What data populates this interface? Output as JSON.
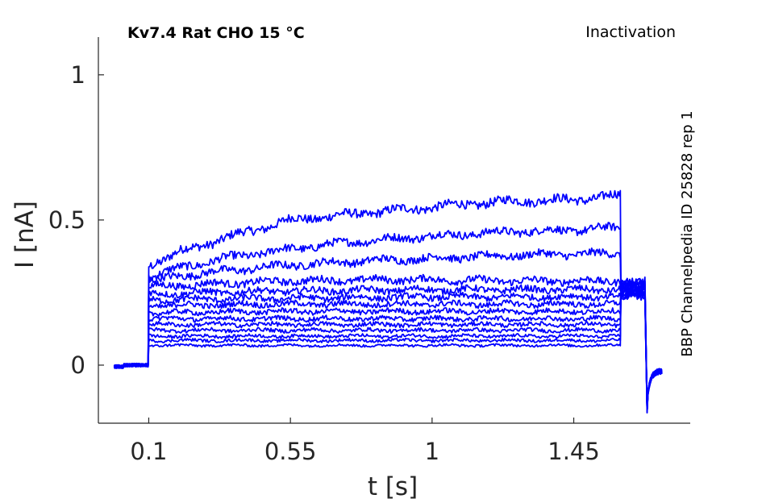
{
  "chart_data": {
    "type": "line",
    "title": "Kv7.4  Rat  CHO  15 °C",
    "subtitle": "Inactivation",
    "side_note": "BBP Channelpedia ID 25828 rep 1",
    "xlabel": "t [s]",
    "ylabel": "I [nA]",
    "xlim": [
      -0.06,
      1.82
    ],
    "ylim": [
      -0.2,
      1.13
    ],
    "xticks": [
      0.1,
      0.55,
      1,
      1.45
    ],
    "xtick_labels": [
      "0.1",
      "0.55",
      "1",
      "1.45"
    ],
    "yticks": [
      0,
      0.5,
      1
    ],
    "ytick_labels": [
      "0",
      "0.5",
      "1"
    ],
    "grid": false,
    "line_color": "#0000ff",
    "protocol": {
      "baseline_start": -0.01,
      "step_on": 0.1,
      "step_off": 1.6,
      "tail_end": 1.68,
      "end": 1.73,
      "tail_current": 0.26,
      "tail_spike": -0.15,
      "end_current": -0.02
    },
    "series": [
      {
        "values": [
          [
            0.1,
            0.345
          ],
          [
            0.2,
            0.39
          ],
          [
            0.35,
            0.44
          ],
          [
            0.55,
            0.5
          ],
          [
            0.75,
            0.52
          ],
          [
            1.0,
            0.545
          ],
          [
            1.25,
            0.565
          ],
          [
            1.45,
            0.57
          ],
          [
            1.6,
            0.585
          ]
        ]
      },
      {
        "values": [
          [
            0.1,
            0.305
          ],
          [
            0.2,
            0.335
          ],
          [
            0.35,
            0.37
          ],
          [
            0.55,
            0.4
          ],
          [
            0.75,
            0.425
          ],
          [
            1.0,
            0.445
          ],
          [
            1.25,
            0.46
          ],
          [
            1.45,
            0.465
          ],
          [
            1.6,
            0.475
          ]
        ]
      },
      {
        "values": [
          [
            0.1,
            0.29
          ],
          [
            0.25,
            0.315
          ],
          [
            0.55,
            0.345
          ],
          [
            0.8,
            0.36
          ],
          [
            1.05,
            0.37
          ],
          [
            1.3,
            0.38
          ],
          [
            1.6,
            0.385
          ]
        ]
      },
      {
        "values": [
          [
            0.1,
            0.27
          ],
          [
            0.3,
            0.28
          ],
          [
            0.55,
            0.29
          ],
          [
            0.9,
            0.295
          ],
          [
            1.3,
            0.29
          ],
          [
            1.6,
            0.29
          ]
        ]
      },
      {
        "values": [
          [
            0.1,
            0.245
          ],
          [
            0.5,
            0.255
          ],
          [
            1.0,
            0.26
          ],
          [
            1.6,
            0.26
          ]
        ]
      },
      {
        "values": [
          [
            0.1,
            0.225
          ],
          [
            0.5,
            0.23
          ],
          [
            1.0,
            0.235
          ],
          [
            1.6,
            0.235
          ]
        ]
      },
      {
        "values": [
          [
            0.1,
            0.205
          ],
          [
            0.5,
            0.21
          ],
          [
            1.0,
            0.21
          ],
          [
            1.6,
            0.21
          ]
        ]
      },
      {
        "values": [
          [
            0.1,
            0.18
          ],
          [
            0.5,
            0.185
          ],
          [
            1.0,
            0.185
          ],
          [
            1.6,
            0.185
          ]
        ]
      },
      {
        "values": [
          [
            0.1,
            0.16
          ],
          [
            0.5,
            0.16
          ],
          [
            1.0,
            0.16
          ],
          [
            1.6,
            0.16
          ]
        ]
      },
      {
        "values": [
          [
            0.1,
            0.14
          ],
          [
            0.5,
            0.14
          ],
          [
            1.0,
            0.14
          ],
          [
            1.6,
            0.14
          ]
        ]
      },
      {
        "values": [
          [
            0.1,
            0.12
          ],
          [
            0.5,
            0.12
          ],
          [
            1.0,
            0.12
          ],
          [
            1.6,
            0.12
          ]
        ]
      },
      {
        "values": [
          [
            0.1,
            0.1
          ],
          [
            0.5,
            0.1
          ],
          [
            1.0,
            0.1
          ],
          [
            1.6,
            0.1
          ]
        ]
      },
      {
        "values": [
          [
            0.1,
            0.085
          ],
          [
            0.5,
            0.085
          ],
          [
            1.0,
            0.085
          ],
          [
            1.6,
            0.085
          ]
        ]
      },
      {
        "values": [
          [
            0.1,
            0.068
          ],
          [
            0.5,
            0.068
          ],
          [
            1.0,
            0.068
          ],
          [
            1.6,
            0.068
          ]
        ]
      }
    ]
  }
}
